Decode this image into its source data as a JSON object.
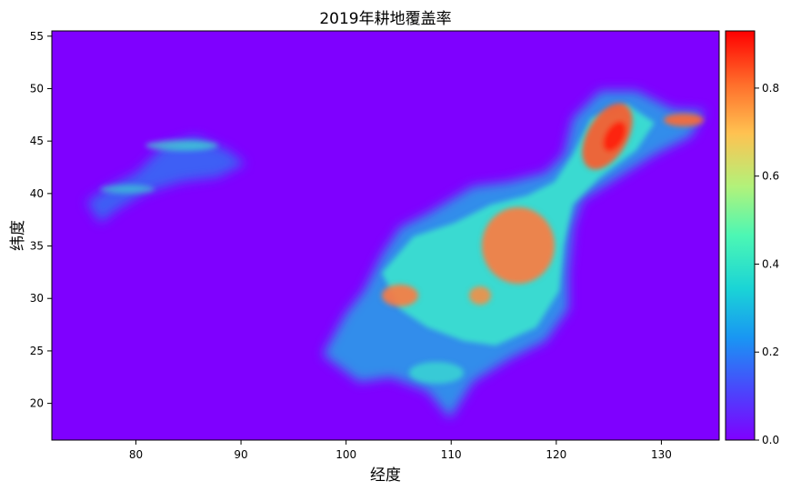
{
  "chart_data": {
    "type": "heatmap",
    "title": "2019年耕地覆盖率",
    "xlabel": "经度",
    "ylabel": "纬度",
    "xlim": [
      72,
      135.5
    ],
    "ylim": [
      16.5,
      55.5
    ],
    "xticks": [
      80,
      90,
      100,
      110,
      120,
      130
    ],
    "yticks": [
      20,
      25,
      30,
      35,
      40,
      45,
      50,
      55
    ],
    "colormap": "rainbow",
    "colorbar": {
      "range": [
        0,
        0.93
      ],
      "ticks": [
        "0.0",
        "0.2",
        "0.4",
        "0.6",
        "0.8"
      ],
      "tick_values": [
        0,
        0.2,
        0.4,
        0.6,
        0.8
      ]
    },
    "grid": false,
    "background_value": 0
  },
  "colors": {
    "background_cell": "#7f00ff",
    "low": "#3a6cf5",
    "mid": "#3ef4c8",
    "high": "#ff7a3d",
    "peak": "#ff1a10"
  }
}
